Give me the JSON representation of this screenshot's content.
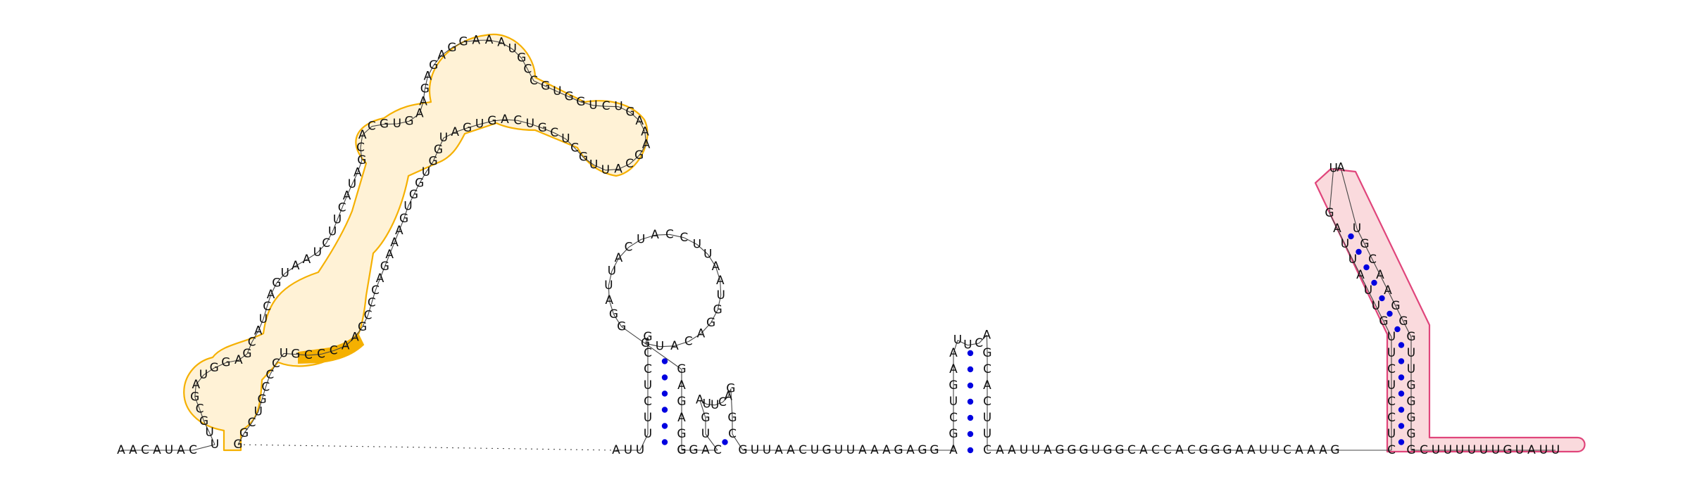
{
  "figure": {
    "colors": {
      "pair_dot": "#0000e0",
      "highlight_orange": "#f5b000",
      "highlight_pink": "#e0457b",
      "backbone": "#444444"
    },
    "sequences": {
      "five_prime": "AACAUAC",
      "h1_left": "UUGCGAUGGAGCAUCAGUAAUCUUCAUAGCACGUGAAGAGAGGAAAUGCCGUGGUCUGAAAGCAUUGCUCGUCAGUGAUGGUGGUGAAAGACCCGAACCCGUCCCGUCGG",
      "linker_3": "AUU",
      "h3_stem5": "UUCUCCG",
      "h3_loop": "GUACAGGUAAUUCCAUCAUUAGG",
      "h3_stem3": "GAGAGG",
      "h4_stem5": "GAC",
      "h4_loop": "AUUCAG",
      "h4_stem3": "GC",
      "linker_mid": "GUUAACUGUUAAAGAGG",
      "h5_stem5": "AAGUCGA",
      "h5_loop": "UUCA",
      "h5_stem3": "GCACUUC",
      "linker_long": "AAUUAGGGUGGCACCACGGGAAUUCAAAG",
      "h6_stem5": "CUCCUCUUGUUAUUAG",
      "h6_loop": "UA",
      "h6_stem3": "UGCAAGGGUUGGGGG",
      "three_prime": "CUUUUUUGUAUU"
    }
  }
}
